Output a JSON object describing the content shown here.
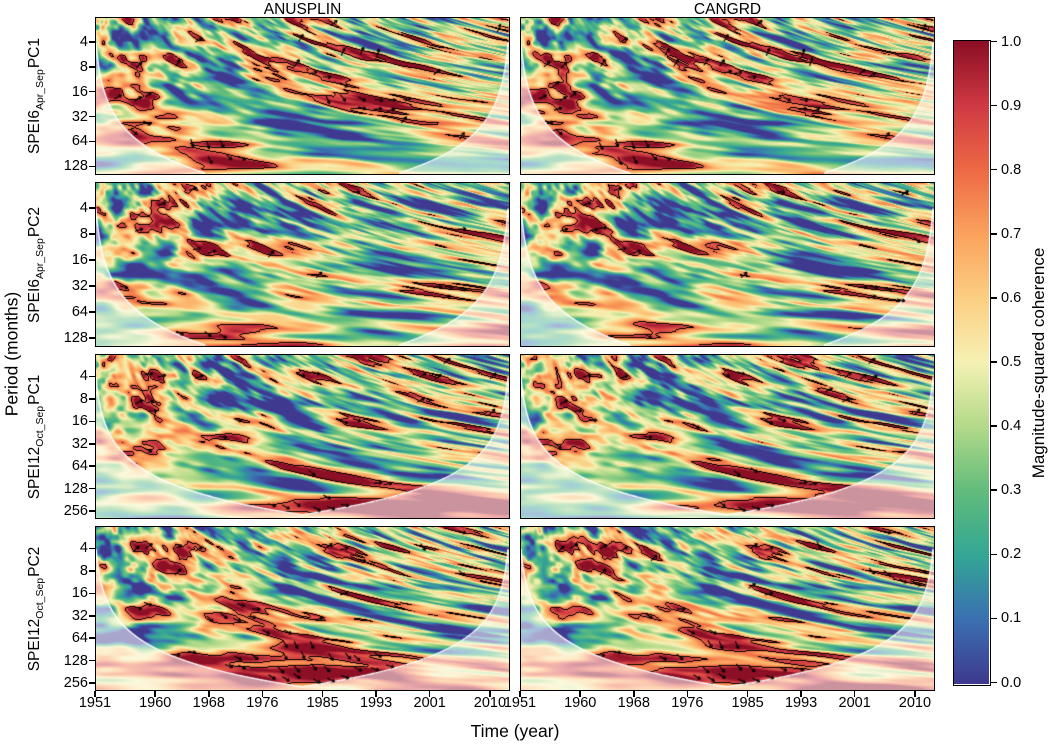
{
  "figure": {
    "columns": [
      {
        "label": "ANUSPLIN"
      },
      {
        "label": "CANGRD"
      }
    ],
    "rows": [
      {
        "label_base": "SPEI6",
        "label_sub": "Apr_Sep",
        "label_suffix": "PC1"
      },
      {
        "label_base": "SPEI6",
        "label_sub": "Apr_Sep",
        "label_suffix": "PC2"
      },
      {
        "label_base": "SPEI12",
        "label_sub": "Oct_Sep",
        "label_suffix": "PC1"
      },
      {
        "label_base": "SPEI12",
        "label_sub": "Oct_Sep",
        "label_suffix": "PC2"
      }
    ],
    "xlabel": "Time (year)",
    "ylabel": "Period (months)",
    "colorbar": {
      "label": "Magnitude-squared coherence",
      "ticks": [
        "1.0",
        "0.9",
        "0.8",
        "0.7",
        "0.6",
        "0.5",
        "0.4",
        "0.3",
        "0.2",
        "0.1",
        "0.0"
      ]
    }
  },
  "chart_data": {
    "type": "heatmap",
    "subtype": "wavelet magnitude-squared coherence scalograms (4 rows x 2 columns)",
    "columns": [
      "ANUSPLIN",
      "CANGRD"
    ],
    "rows": [
      "SPEI6_Apr_Sep PC1",
      "SPEI6_Apr_Sep PC2",
      "SPEI12_Oct_Sep PC1",
      "SPEI12_Oct_Sep PC2"
    ],
    "x": {
      "label": "Time (year)",
      "range": [
        1951,
        2013
      ],
      "ticks": [
        1951,
        1960,
        1968,
        1976,
        1985,
        1993,
        2001,
        2010
      ]
    },
    "y": {
      "label": "Period (months)",
      "scale": "log2",
      "ticks_rows_1_2": [
        4,
        8,
        16,
        32,
        64,
        128
      ],
      "ticks_rows_3_4": [
        4,
        8,
        16,
        32,
        64,
        128,
        256
      ]
    },
    "z": {
      "label": "Magnitude-squared coherence",
      "range": [
        0.0,
        1.0
      ],
      "colorbar_ticks": [
        1.0,
        0.9,
        0.8,
        0.7,
        0.6,
        0.5,
        0.4,
        0.3,
        0.2,
        0.1,
        0.0
      ]
    },
    "colormap_stops": [
      {
        "value": 0.0,
        "color": "#3f3a8f"
      },
      {
        "value": 0.1,
        "color": "#3b71b3"
      },
      {
        "value": 0.2,
        "color": "#34a795"
      },
      {
        "value": 0.3,
        "color": "#62bd7c"
      },
      {
        "value": 0.4,
        "color": "#b3da89"
      },
      {
        "value": 0.5,
        "color": "#f6f2b4"
      },
      {
        "value": 0.6,
        "color": "#fccf83"
      },
      {
        "value": 0.7,
        "color": "#fba35e"
      },
      {
        "value": 0.8,
        "color": "#ee6a45"
      },
      {
        "value": 0.9,
        "color": "#d03a44"
      },
      {
        "value": 1.0,
        "color": "#8c0f25"
      }
    ],
    "annotations": {
      "cone_of_influence": "thin white arch in each panel; area outside the cone (lower corners) is whitened/faded",
      "significance": "black contours enclosing high-coherence (>~0.8) patches, filled with black phase arrows"
    },
    "significant_regions": [
      {
        "row": "SPEI6_Apr_Sep PC1",
        "regions": [
          {
            "years": [
              1963,
              1975
            ],
            "period_months": [
              8,
              16
            ],
            "note": "two adjacent patches, both datasets"
          },
          {
            "years": [
              1984,
              1995
            ],
            "period_months": [
              24,
              40
            ]
          },
          {
            "years": [
              1954,
              2000
            ],
            "period_months": [
              2,
              5
            ],
            "note": "several small patches near top"
          }
        ]
      },
      {
        "row": "SPEI6_Apr_Sep PC2",
        "regions": [
          {
            "years": [
              1986,
              1997
            ],
            "period_months": [
              14,
              20
            ]
          },
          {
            "years": [
              1983,
              1986
            ],
            "period_months": [
              8,
              12
            ]
          },
          {
            "years": [
              2009,
              2013
            ],
            "period_months": [
              14,
              18
            ],
            "note": "right-edge patch"
          },
          {
            "years": [
              1956,
              2002
            ],
            "period_months": [
              2,
              6
            ],
            "note": "several small patches near top"
          }
        ]
      },
      {
        "row": "SPEI12_Oct_Sep PC1",
        "regions": [
          {
            "years": [
              1983,
              2001
            ],
            "period_months": [
              28,
              64
            ],
            "note": "large elongated patch"
          },
          {
            "years": [
              1978,
              2000
            ],
            "period_months": [
              100,
              150
            ],
            "note": "horizontal band near 128 months (ANUSPLIN stronger)"
          },
          {
            "years": [
              1960,
              1972
            ],
            "period_months": [
              3,
              16
            ],
            "note": "narrow vertical features"
          }
        ]
      },
      {
        "row": "SPEI12_Oct_Sep PC2",
        "regions": [
          {
            "years": [
              1980,
              1998
            ],
            "period_months": [
              40,
              90
            ],
            "note": "large patch near 64 months"
          },
          {
            "years": [
              1962,
              1976
            ],
            "period_months": [
              14,
              32
            ]
          },
          {
            "years": [
              1999,
              2005
            ],
            "period_months": [
              28,
              36
            ]
          }
        ]
      }
    ]
  }
}
